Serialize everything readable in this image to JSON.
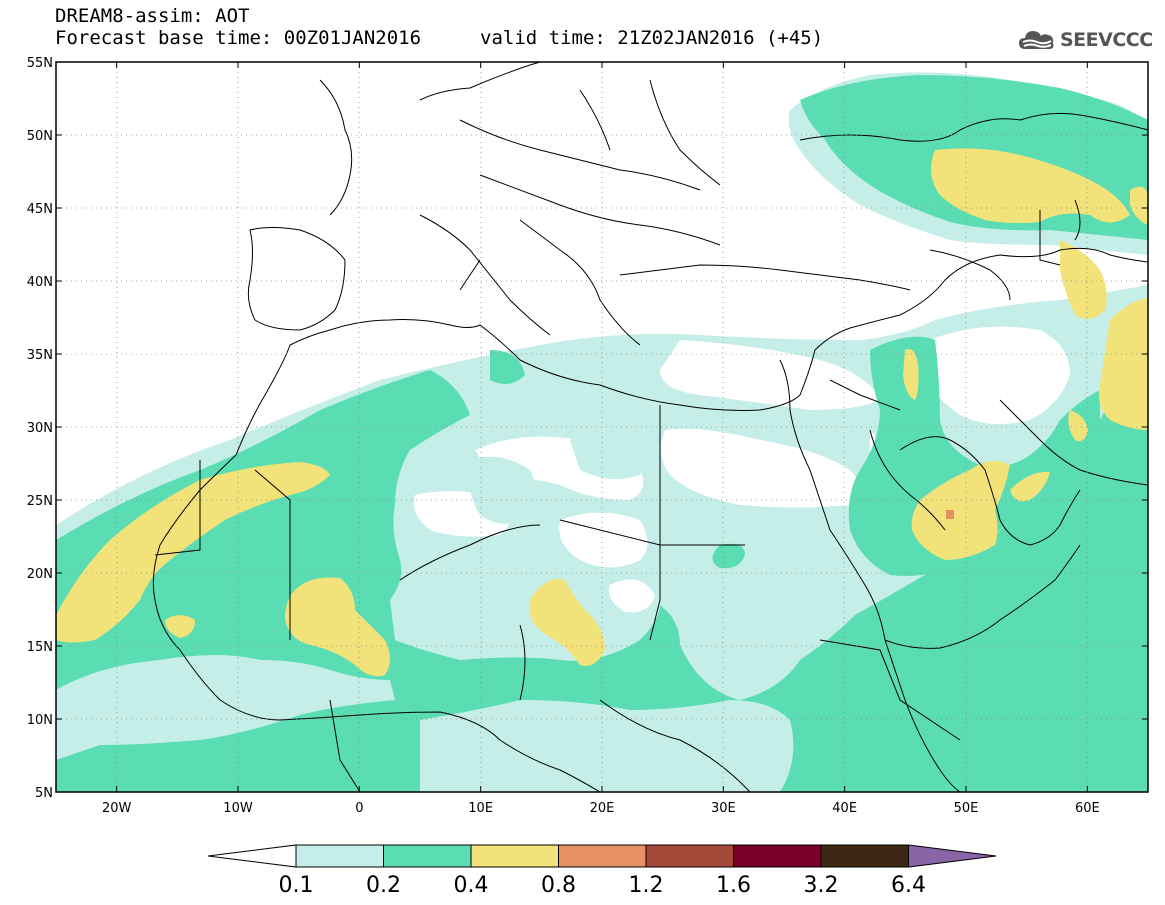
{
  "header": {
    "title": "DREAM8-assim: AOT",
    "base_time": "Forecast base time: 00Z01JAN2016",
    "valid_time": "valid time: 21Z02JAN2016 (+45)"
  },
  "logo": {
    "text": "SEEVCCC",
    "icon": "cloud-icon"
  },
  "map": {
    "lat_labels": [
      "55N",
      "50N",
      "45N",
      "40N",
      "35N",
      "30N",
      "25N",
      "20N",
      "15N",
      "10N",
      "5N"
    ],
    "lon_labels": [
      "20W",
      "10W",
      "0",
      "10E",
      "20E",
      "30E",
      "40E",
      "50E",
      "60E"
    ],
    "lat_range": [
      5,
      55
    ],
    "lon_range": [
      -25,
      65
    ]
  },
  "colorbar": {
    "labels": [
      "0.1",
      "0.2",
      "0.4",
      "0.8",
      "1.2",
      "1.6",
      "3.2",
      "6.4"
    ],
    "colors": [
      "#ffffff",
      "#c6eee8",
      "#5bddb4",
      "#f2e27a",
      "#e59065",
      "#a54a3a",
      "#7b0028",
      "#3d2816",
      "#8a65a6"
    ]
  },
  "legend_colors": {
    "0.1-0.2": "#c6eee8",
    "0.2-0.4": "#5bddb4",
    "0.4-0.8": "#f2e27a",
    "0.8-1.2": "#e59065"
  }
}
